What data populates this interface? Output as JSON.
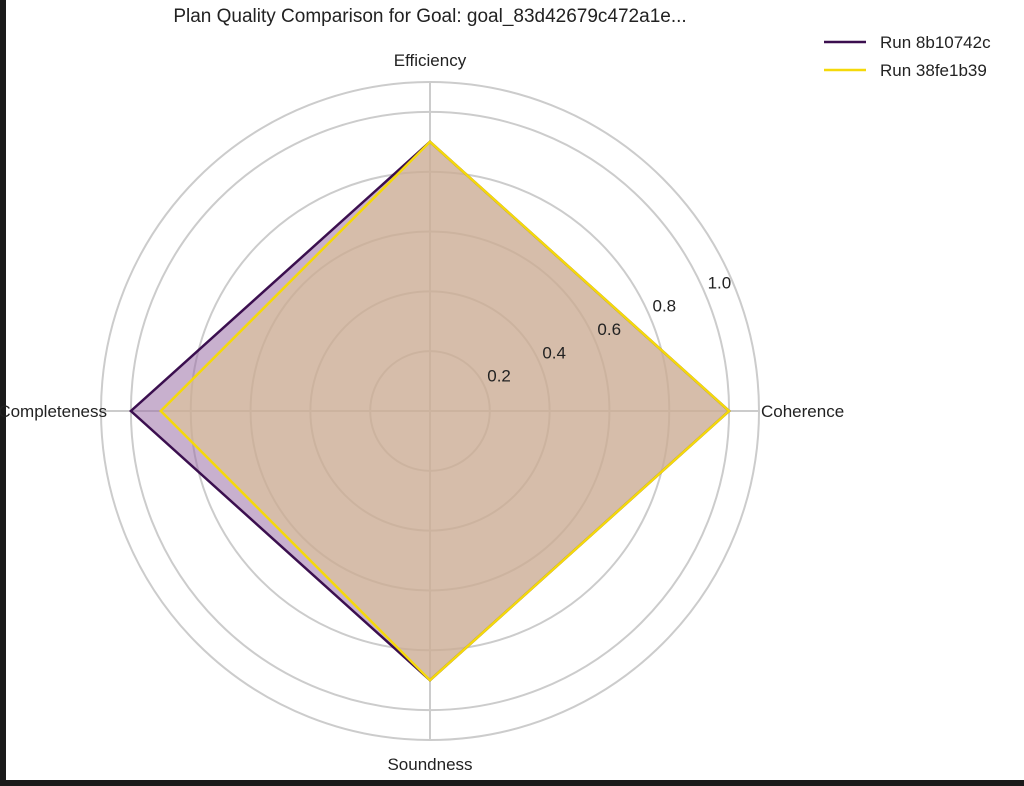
{
  "chart_data": {
    "type": "radar",
    "title": "Plan Quality Comparison for Goal: goal_83d42679c472a1e...",
    "axes": [
      "Efficiency",
      "Coherence",
      "Soundness",
      "Completeness"
    ],
    "radial_ticks": [
      0.2,
      0.4,
      0.6,
      0.8,
      1.0
    ],
    "radial_tick_labels": [
      "0.2",
      "0.4",
      "0.6",
      "0.8",
      "1.0"
    ],
    "rlim": [
      0,
      1.1
    ],
    "grid": true,
    "legend_position": "top-right",
    "series": [
      {
        "name": "Run 8b10742c",
        "values": [
          0.9,
          1.0,
          0.9,
          1.0
        ],
        "color": "#3b0f4f",
        "fill": "#9b6fa6"
      },
      {
        "name": "Run 38fe1b39",
        "values": [
          0.9,
          1.0,
          0.9,
          0.9
        ],
        "color": "#f5d90a",
        "fill": "#e1c98c"
      }
    ]
  }
}
